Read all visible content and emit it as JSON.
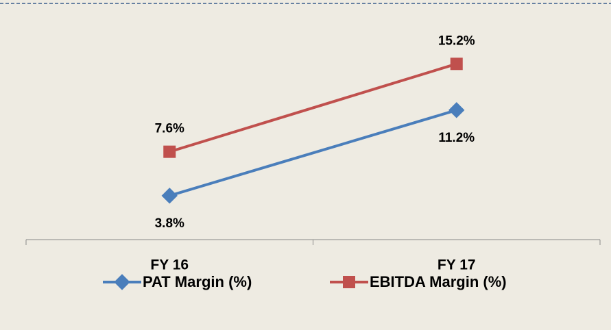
{
  "chart_data": {
    "type": "line",
    "categories": [
      "FY 16",
      "FY 17"
    ],
    "series": [
      {
        "name": "PAT Margin (%)",
        "color": "#4a7ebb",
        "marker": "diamond",
        "label_position": "below",
        "values": [
          3.8,
          11.2
        ],
        "value_labels": [
          "3.8%",
          "11.2%"
        ]
      },
      {
        "name": "EBITDA Margin (%)",
        "color": "#c0504d",
        "marker": "square",
        "label_position": "above",
        "values": [
          7.6,
          15.2
        ],
        "value_labels": [
          "7.6%",
          "15.2%"
        ]
      }
    ],
    "ylim": [
      0,
      18
    ],
    "legend": "bottom"
  }
}
